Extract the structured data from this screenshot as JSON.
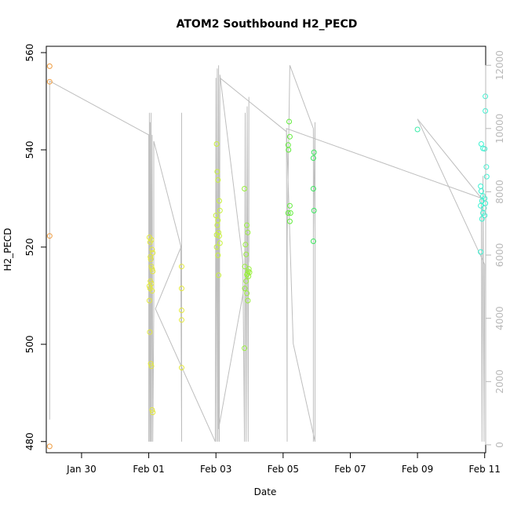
{
  "chart_data": {
    "type": "scatter",
    "title": "ATOM2 Southbound H2_PECD",
    "xlabel": "Date",
    "ylabel": "H2_PECD",
    "x_unit": "days since Jan 30",
    "xlim": [
      -1.05,
      12.03
    ],
    "ylim": [
      477.7,
      561.3
    ],
    "y2lim": [
      -250,
      12600
    ],
    "x_ticks": [
      {
        "value": 0,
        "label": "Jan 30"
      },
      {
        "value": 2,
        "label": "Feb 01"
      },
      {
        "value": 4,
        "label": "Feb 03"
      },
      {
        "value": 6,
        "label": "Feb 05"
      },
      {
        "value": 8,
        "label": "Feb 07"
      },
      {
        "value": 10,
        "label": "Feb 09"
      },
      {
        "value": 12,
        "label": "Feb 11"
      }
    ],
    "y_ticks": [
      480,
      500,
      520,
      540,
      560
    ],
    "y2_ticks": [
      0,
      2000,
      4000,
      6000,
      8000,
      10000,
      12000
    ],
    "colors": {
      "line": "#bebebe",
      "axis": "#000000",
      "right_axis": "#b8b8b8",
      "palette": [
        "#ee9a3c",
        "#e3e83c",
        "#c9f23c",
        "#99f03c",
        "#62ec3c",
        "#3ce85f",
        "#3cecaa",
        "#3cf2d2"
      ]
    },
    "points": [
      [
        -0.95,
        557.2,
        0
      ],
      [
        -0.95,
        554.0,
        0
      ],
      [
        -0.95,
        522.3,
        0
      ],
      [
        -0.95,
        479.0,
        0
      ],
      [
        2.02,
        522.0,
        1
      ],
      [
        2.04,
        521.0,
        1
      ],
      [
        2.08,
        521.5,
        1
      ],
      [
        2.1,
        519.5,
        1
      ],
      [
        2.12,
        518.8,
        1
      ],
      [
        2.05,
        518.0,
        1
      ],
      [
        2.06,
        517.5,
        1
      ],
      [
        2.08,
        516.0,
        1
      ],
      [
        2.1,
        515.5,
        1
      ],
      [
        2.12,
        515.0,
        1
      ],
      [
        2.05,
        513.0,
        1
      ],
      [
        2.08,
        512.5,
        1
      ],
      [
        2.02,
        512.0,
        1
      ],
      [
        2.04,
        511.5,
        1
      ],
      [
        2.1,
        511.0,
        1
      ],
      [
        2.02,
        509.0,
        1
      ],
      [
        2.03,
        502.5,
        1
      ],
      [
        2.06,
        496.0,
        1
      ],
      [
        2.08,
        495.5,
        1
      ],
      [
        2.1,
        486.5,
        1
      ],
      [
        2.12,
        486.0,
        1
      ],
      [
        2.98,
        516.0,
        1
      ],
      [
        2.98,
        511.5,
        1
      ],
      [
        2.98,
        507.0,
        1
      ],
      [
        2.98,
        505.0,
        1
      ],
      [
        2.98,
        495.2,
        1
      ],
      [
        4.02,
        541.2,
        2
      ],
      [
        4.04,
        535.5,
        2
      ],
      [
        4.06,
        533.8,
        2
      ],
      [
        4.1,
        529.5,
        2
      ],
      [
        4.12,
        527.5,
        2
      ],
      [
        4.0,
        526.5,
        2
      ],
      [
        4.06,
        525.5,
        2
      ],
      [
        4.04,
        524.5,
        2
      ],
      [
        4.08,
        523.0,
        2
      ],
      [
        4.02,
        522.5,
        2
      ],
      [
        4.1,
        522.3,
        2
      ],
      [
        4.12,
        520.8,
        2
      ],
      [
        4.02,
        520.0,
        2
      ],
      [
        4.06,
        518.3,
        2
      ],
      [
        4.08,
        514.2,
        2
      ],
      [
        4.85,
        532.0,
        3
      ],
      [
        4.92,
        524.5,
        3
      ],
      [
        4.95,
        523.0,
        3
      ],
      [
        4.88,
        520.5,
        3
      ],
      [
        4.9,
        518.5,
        3
      ],
      [
        4.86,
        516.0,
        3
      ],
      [
        4.98,
        515.5,
        3
      ],
      [
        4.96,
        515.0,
        3
      ],
      [
        5.0,
        514.8,
        3
      ],
      [
        4.94,
        514.5,
        3
      ],
      [
        4.92,
        514.3,
        3
      ],
      [
        4.97,
        514.0,
        3
      ],
      [
        4.9,
        513.0,
        3
      ],
      [
        4.86,
        511.5,
        3
      ],
      [
        4.92,
        510.5,
        3
      ],
      [
        4.95,
        509.0,
        3
      ],
      [
        4.85,
        499.2,
        3
      ],
      [
        6.18,
        545.8,
        4
      ],
      [
        6.2,
        542.7,
        4
      ],
      [
        6.15,
        541.0,
        4
      ],
      [
        6.16,
        540.0,
        4
      ],
      [
        6.2,
        528.5,
        4
      ],
      [
        6.22,
        527.0,
        4
      ],
      [
        6.15,
        527.0,
        4
      ],
      [
        6.2,
        525.3,
        4
      ],
      [
        6.92,
        539.5,
        5
      ],
      [
        6.9,
        538.3,
        5
      ],
      [
        6.9,
        532.0,
        5
      ],
      [
        6.92,
        527.5,
        5
      ],
      [
        6.9,
        521.2,
        5
      ],
      [
        10.0,
        544.2,
        6
      ],
      [
        11.9,
        541.2,
        7
      ],
      [
        11.95,
        540.3,
        7
      ],
      [
        12.02,
        551.0,
        7
      ],
      [
        12.02,
        548.0,
        7
      ],
      [
        12.0,
        540.2,
        7
      ],
      [
        12.05,
        536.5,
        7
      ],
      [
        12.06,
        534.5,
        7
      ],
      [
        11.88,
        532.5,
        7
      ],
      [
        11.9,
        531.5,
        7
      ],
      [
        11.95,
        530.5,
        7
      ],
      [
        12.0,
        530.0,
        7
      ],
      [
        11.92,
        529.5,
        7
      ],
      [
        12.02,
        529.0,
        7
      ],
      [
        11.88,
        528.5,
        7
      ],
      [
        11.98,
        528.0,
        7
      ],
      [
        11.95,
        527.0,
        7
      ],
      [
        12.0,
        526.5,
        7
      ],
      [
        11.92,
        525.8,
        7
      ],
      [
        11.88,
        519.0,
        7
      ]
    ],
    "line_y2": [
      [
        -0.95,
        800
      ],
      [
        -0.95,
        11500
      ],
      [
        2.0,
        9800
      ],
      [
        2.0,
        100
      ],
      [
        2.02,
        10500
      ],
      [
        2.03,
        100
      ],
      [
        2.04,
        10200
      ],
      [
        2.06,
        100
      ],
      [
        2.07,
        10500
      ],
      [
        2.08,
        100
      ],
      [
        2.1,
        9800
      ],
      [
        2.12,
        100
      ],
      [
        2.15,
        4200
      ],
      [
        2.15,
        9600
      ],
      [
        2.95,
        6300
      ],
      [
        2.98,
        100
      ],
      [
        2.98,
        10500
      ],
      [
        2.98,
        100
      ],
      [
        2.98,
        6300
      ],
      [
        2.2,
        4300
      ],
      [
        3.98,
        100
      ],
      [
        4.0,
        11600
      ],
      [
        4.02,
        100
      ],
      [
        4.04,
        11900
      ],
      [
        4.06,
        100
      ],
      [
        4.08,
        12000
      ],
      [
        4.1,
        100
      ],
      [
        4.12,
        11700
      ],
      [
        4.8,
        5800
      ],
      [
        4.85,
        100
      ],
      [
        4.87,
        10500
      ],
      [
        4.9,
        100
      ],
      [
        4.93,
        10700
      ],
      [
        4.96,
        100
      ],
      [
        4.98,
        11000
      ],
      [
        4.98,
        5800
      ],
      [
        4.08,
        500
      ],
      [
        4.12,
        11600
      ],
      [
        6.1,
        9900
      ],
      [
        6.12,
        100
      ],
      [
        6.12,
        6500
      ],
      [
        6.2,
        12000
      ],
      [
        6.9,
        10000
      ],
      [
        6.9,
        100
      ],
      [
        6.9,
        6500
      ],
      [
        6.95,
        10200
      ],
      [
        6.95,
        100
      ],
      [
        6.3,
        3200
      ],
      [
        6.1,
        10000
      ],
      [
        11.9,
        7800
      ],
      [
        11.92,
        100
      ],
      [
        11.95,
        8500
      ],
      [
        11.98,
        100
      ],
      [
        12.0,
        5700
      ],
      [
        10.0,
        10300
      ],
      [
        11.9,
        7800
      ]
    ]
  }
}
